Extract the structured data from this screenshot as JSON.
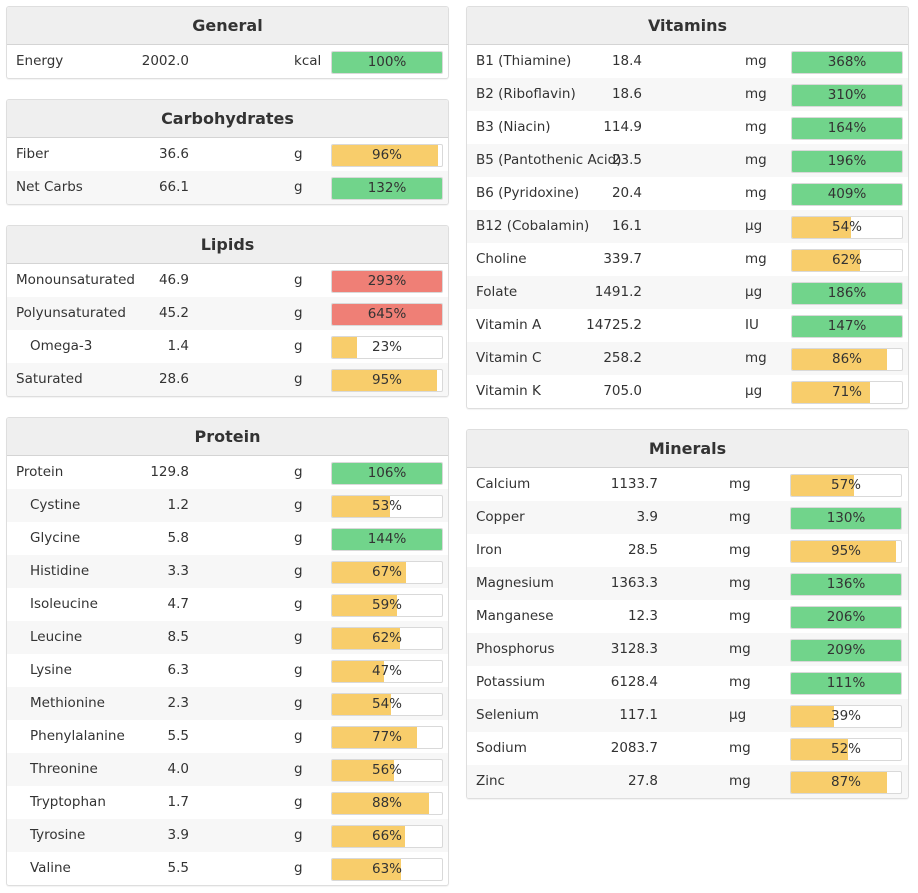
{
  "colors": {
    "green": "#71d48b",
    "yellow": "#f8cd6b",
    "red": "#ef7f76"
  },
  "general": {
    "title": "General",
    "rows": [
      {
        "name": "Energy",
        "amount": "2002.0",
        "unit": "kcal",
        "percent": "100%",
        "pct": 100,
        "status": "green",
        "indent": false
      }
    ]
  },
  "carbohydrates": {
    "title": "Carbohydrates",
    "rows": [
      {
        "name": "Fiber",
        "amount": "36.6",
        "unit": "g",
        "percent": "96%",
        "pct": 96,
        "status": "yellow",
        "indent": false
      },
      {
        "name": "Net Carbs",
        "amount": "66.1",
        "unit": "g",
        "percent": "132%",
        "pct": 132,
        "status": "green",
        "indent": false
      }
    ]
  },
  "lipids": {
    "title": "Lipids",
    "rows": [
      {
        "name": "Monounsaturated",
        "amount": "46.9",
        "unit": "g",
        "percent": "293%",
        "pct": 293,
        "status": "red",
        "indent": false
      },
      {
        "name": "Polyunsaturated",
        "amount": "45.2",
        "unit": "g",
        "percent": "645%",
        "pct": 645,
        "status": "red",
        "indent": false
      },
      {
        "name": "Omega-3",
        "amount": "1.4",
        "unit": "g",
        "percent": "23%",
        "pct": 23,
        "status": "yellow",
        "indent": true
      },
      {
        "name": "Saturated",
        "amount": "28.6",
        "unit": "g",
        "percent": "95%",
        "pct": 95,
        "status": "yellow",
        "indent": false
      }
    ]
  },
  "protein": {
    "title": "Protein",
    "rows": [
      {
        "name": "Protein",
        "amount": "129.8",
        "unit": "g",
        "percent": "106%",
        "pct": 106,
        "status": "green",
        "indent": false
      },
      {
        "name": "Cystine",
        "amount": "1.2",
        "unit": "g",
        "percent": "53%",
        "pct": 53,
        "status": "yellow",
        "indent": true
      },
      {
        "name": "Glycine",
        "amount": "5.8",
        "unit": "g",
        "percent": "144%",
        "pct": 144,
        "status": "green",
        "indent": true
      },
      {
        "name": "Histidine",
        "amount": "3.3",
        "unit": "g",
        "percent": "67%",
        "pct": 67,
        "status": "yellow",
        "indent": true
      },
      {
        "name": "Isoleucine",
        "amount": "4.7",
        "unit": "g",
        "percent": "59%",
        "pct": 59,
        "status": "yellow",
        "indent": true
      },
      {
        "name": "Leucine",
        "amount": "8.5",
        "unit": "g",
        "percent": "62%",
        "pct": 62,
        "status": "yellow",
        "indent": true
      },
      {
        "name": "Lysine",
        "amount": "6.3",
        "unit": "g",
        "percent": "47%",
        "pct": 47,
        "status": "yellow",
        "indent": true
      },
      {
        "name": "Methionine",
        "amount": "2.3",
        "unit": "g",
        "percent": "54%",
        "pct": 54,
        "status": "yellow",
        "indent": true
      },
      {
        "name": "Phenylalanine",
        "amount": "5.5",
        "unit": "g",
        "percent": "77%",
        "pct": 77,
        "status": "yellow",
        "indent": true
      },
      {
        "name": "Threonine",
        "amount": "4.0",
        "unit": "g",
        "percent": "56%",
        "pct": 56,
        "status": "yellow",
        "indent": true
      },
      {
        "name": "Tryptophan",
        "amount": "1.7",
        "unit": "g",
        "percent": "88%",
        "pct": 88,
        "status": "yellow",
        "indent": true
      },
      {
        "name": "Tyrosine",
        "amount": "3.9",
        "unit": "g",
        "percent": "66%",
        "pct": 66,
        "status": "yellow",
        "indent": true
      },
      {
        "name": "Valine",
        "amount": "5.5",
        "unit": "g",
        "percent": "63%",
        "pct": 63,
        "status": "yellow",
        "indent": true
      }
    ]
  },
  "vitamins": {
    "title": "Vitamins",
    "rows": [
      {
        "name": "B1 (Thiamine)",
        "amount": "18.4",
        "unit": "mg",
        "percent": "368%",
        "pct": 368,
        "status": "green",
        "indent": false
      },
      {
        "name": "B2 (Riboflavin)",
        "amount": "18.6",
        "unit": "mg",
        "percent": "310%",
        "pct": 310,
        "status": "green",
        "indent": false
      },
      {
        "name": "B3 (Niacin)",
        "amount": "114.9",
        "unit": "mg",
        "percent": "164%",
        "pct": 164,
        "status": "green",
        "indent": false
      },
      {
        "name": "B5 (Pantothenic Acid)",
        "amount": "23.5",
        "unit": "mg",
        "percent": "196%",
        "pct": 196,
        "status": "green",
        "indent": false
      },
      {
        "name": "B6 (Pyridoxine)",
        "amount": "20.4",
        "unit": "mg",
        "percent": "409%",
        "pct": 409,
        "status": "green",
        "indent": false
      },
      {
        "name": "B12 (Cobalamin)",
        "amount": "16.1",
        "unit": "µg",
        "percent": "54%",
        "pct": 54,
        "status": "yellow",
        "indent": false
      },
      {
        "name": "Choline",
        "amount": "339.7",
        "unit": "mg",
        "percent": "62%",
        "pct": 62,
        "status": "yellow",
        "indent": false
      },
      {
        "name": "Folate",
        "amount": "1491.2",
        "unit": "µg",
        "percent": "186%",
        "pct": 186,
        "status": "green",
        "indent": false
      },
      {
        "name": "Vitamin A",
        "amount": "14725.2",
        "unit": "IU",
        "percent": "147%",
        "pct": 147,
        "status": "green",
        "indent": false
      },
      {
        "name": "Vitamin C",
        "amount": "258.2",
        "unit": "mg",
        "percent": "86%",
        "pct": 86,
        "status": "yellow",
        "indent": false
      },
      {
        "name": "Vitamin K",
        "amount": "705.0",
        "unit": "µg",
        "percent": "71%",
        "pct": 71,
        "status": "yellow",
        "indent": false
      }
    ]
  },
  "minerals": {
    "title": "Minerals",
    "rows": [
      {
        "name": "Calcium",
        "amount": "1133.7",
        "unit": "mg",
        "percent": "57%",
        "pct": 57,
        "status": "yellow",
        "indent": false
      },
      {
        "name": "Copper",
        "amount": "3.9",
        "unit": "mg",
        "percent": "130%",
        "pct": 130,
        "status": "green",
        "indent": false
      },
      {
        "name": "Iron",
        "amount": "28.5",
        "unit": "mg",
        "percent": "95%",
        "pct": 95,
        "status": "yellow",
        "indent": false
      },
      {
        "name": "Magnesium",
        "amount": "1363.3",
        "unit": "mg",
        "percent": "136%",
        "pct": 136,
        "status": "green",
        "indent": false
      },
      {
        "name": "Manganese",
        "amount": "12.3",
        "unit": "mg",
        "percent": "206%",
        "pct": 206,
        "status": "green",
        "indent": false
      },
      {
        "name": "Phosphorus",
        "amount": "3128.3",
        "unit": "mg",
        "percent": "209%",
        "pct": 209,
        "status": "green",
        "indent": false
      },
      {
        "name": "Potassium",
        "amount": "6128.4",
        "unit": "mg",
        "percent": "111%",
        "pct": 111,
        "status": "green",
        "indent": false
      },
      {
        "name": "Selenium",
        "amount": "117.1",
        "unit": "µg",
        "percent": "39%",
        "pct": 39,
        "status": "yellow",
        "indent": false
      },
      {
        "name": "Sodium",
        "amount": "2083.7",
        "unit": "mg",
        "percent": "52%",
        "pct": 52,
        "status": "yellow",
        "indent": false
      },
      {
        "name": "Zinc",
        "amount": "27.8",
        "unit": "mg",
        "percent": "87%",
        "pct": 87,
        "status": "yellow",
        "indent": false
      }
    ]
  }
}
